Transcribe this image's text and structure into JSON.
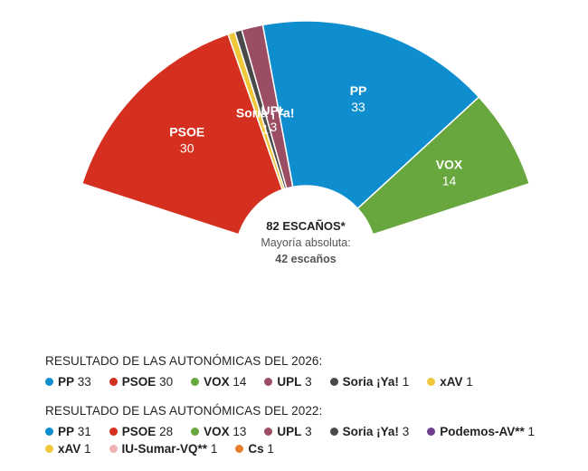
{
  "chart_data": {
    "type": "parliament-semicircle",
    "total_label": "82 ESCAÑOS*",
    "majority_label": "Mayoría absoluta:",
    "majority_value": "42 escaños",
    "parties": [
      {
        "name": "PSOE",
        "seats": 30,
        "color": "#d5301f",
        "show_label": true
      },
      {
        "name": "xAV",
        "seats": 1,
        "color": "#f0c63a",
        "show_label": false
      },
      {
        "name": "Soria ¡Ya!",
        "seats": 1,
        "color": "#4a4a4a",
        "show_label": true
      },
      {
        "name": "UPL",
        "seats": 3,
        "color": "#9b4d63",
        "show_label": true
      },
      {
        "name": "PP",
        "seats": 33,
        "color": "#0e8ece",
        "show_label": true
      },
      {
        "name": "VOX",
        "seats": 14,
        "color": "#67a73d",
        "show_label": true
      }
    ]
  },
  "legend_2026": {
    "title": "RESULTADO DE LAS AUTONÓMICAS DEL 2026:",
    "items": [
      {
        "name": "PP",
        "seats": "33",
        "color": "#0e8ece"
      },
      {
        "name": "PSOE",
        "seats": "30",
        "color": "#d5301f"
      },
      {
        "name": "VOX",
        "seats": "14",
        "color": "#67a73d"
      },
      {
        "name": "UPL",
        "seats": "3",
        "color": "#9b4d63"
      },
      {
        "name": "Soria ¡Ya!",
        "seats": "1",
        "color": "#4a4a4a"
      },
      {
        "name": "xAV",
        "seats": "1",
        "color": "#f0c63a"
      }
    ]
  },
  "legend_2022": {
    "title": "RESULTADO DE LAS AUTONÓMICAS DEL 2022:",
    "items": [
      {
        "name": "PP",
        "seats": "31",
        "color": "#0e8ece"
      },
      {
        "name": "PSOE",
        "seats": "28",
        "color": "#d5301f"
      },
      {
        "name": "VOX",
        "seats": "13",
        "color": "#67a73d"
      },
      {
        "name": "UPL",
        "seats": "3",
        "color": "#9b4d63"
      },
      {
        "name": "Soria ¡Ya!",
        "seats": "3",
        "color": "#4a4a4a"
      },
      {
        "name": "Podemos-AV**",
        "seats": "1",
        "color": "#6f3f8f"
      },
      {
        "name": "xAV",
        "seats": "1",
        "color": "#f0c63a"
      },
      {
        "name": "IU-Sumar-VQ**",
        "seats": "1",
        "color": "#f0b3b3"
      },
      {
        "name": "Cs",
        "seats": "1",
        "color": "#e87e2a"
      }
    ]
  }
}
